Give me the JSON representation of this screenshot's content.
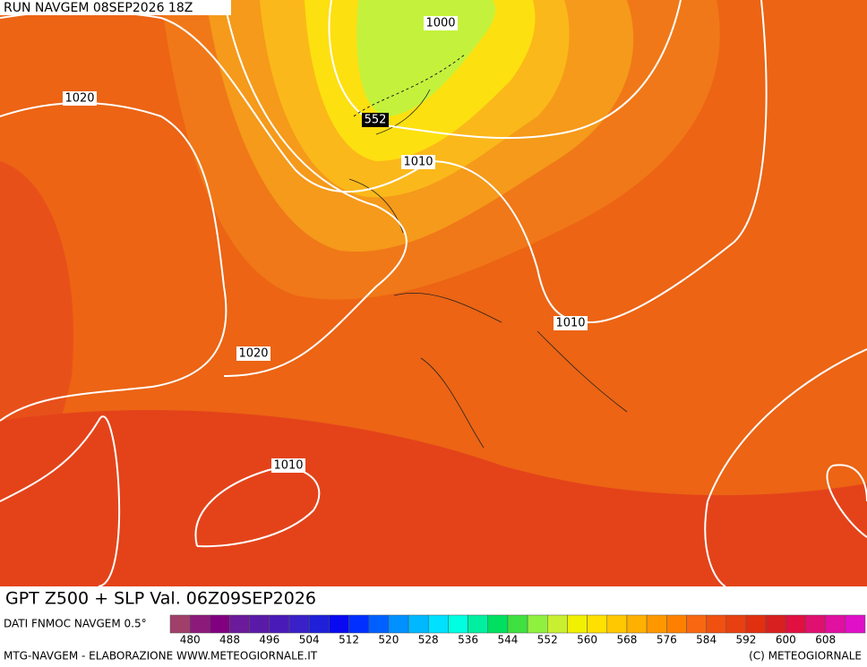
{
  "header": {
    "run": "RUN NAVGEM 08SEP2026 18Z"
  },
  "map": {
    "isobar_labels": [
      "1000",
      "552",
      "1020",
      "1010",
      "1020",
      "1010",
      "1010"
    ]
  },
  "footer": {
    "title": "GPT Z500 + SLP Val. 06Z09SEP2026",
    "source": "DATI FNMOC NAVGEM 0.5°",
    "credit_left": "MTG-NAVGEM - ELABORAZIONE WWW.METEOGIORNALE.IT",
    "credit_right": "(C) METEOGIORNALE"
  },
  "colorbar": {
    "ticks": [
      480,
      488,
      496,
      504,
      512,
      520,
      528,
      536,
      544,
      552,
      560,
      568,
      576,
      584,
      592,
      600,
      608
    ],
    "colors": [
      "#a0406a",
      "#8c1a7a",
      "#800080",
      "#6a1a9a",
      "#5a1aa8",
      "#4a1ab8",
      "#3a20c8",
      "#2020d8",
      "#0a0af0",
      "#0030ff",
      "#0060ff",
      "#0090ff",
      "#00b8ff",
      "#00e0ff",
      "#00ffe0",
      "#00f0a0",
      "#00e060",
      "#40e040",
      "#90f040",
      "#c8f030",
      "#f0f000",
      "#ffe000",
      "#ffc800",
      "#ffb000",
      "#ff9800",
      "#ff8000",
      "#f86810",
      "#f05010",
      "#e84010",
      "#e03010",
      "#d82020",
      "#e01040",
      "#e01070",
      "#e010a0",
      "#e010c8"
    ]
  }
}
